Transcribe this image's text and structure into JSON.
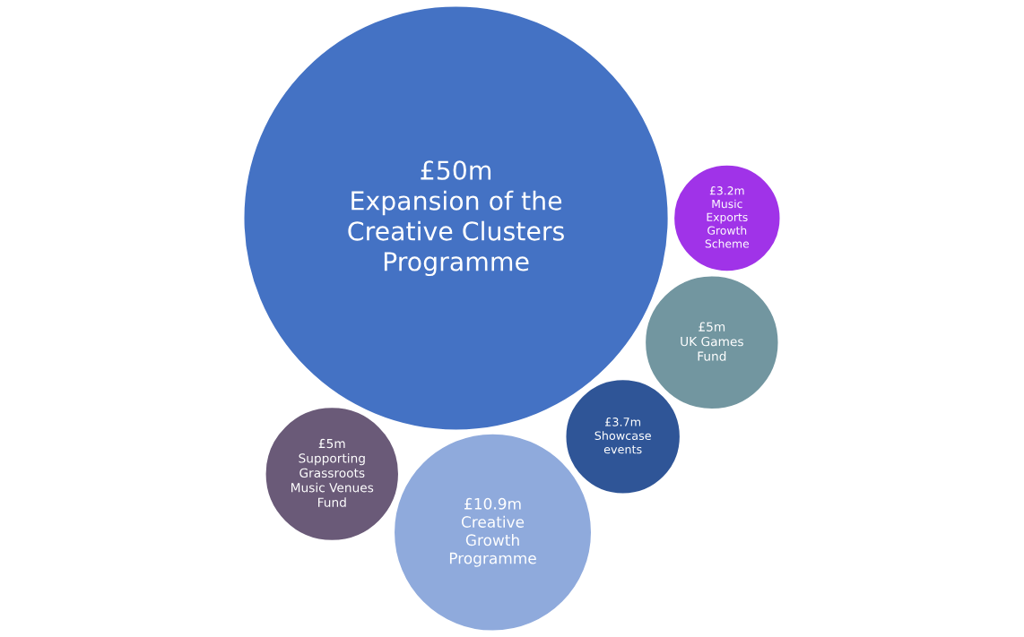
{
  "chart_data": {
    "type": "other",
    "categories": [
      "Expansion of the\nCreative Clusters\nProgramme",
      "Music\nExports\nGrowth\nScheme",
      "UK Games\nFund",
      "Showcase\nevents",
      "Creative\nGrowth\nProgramme",
      "Supporting\nGrassroots\nMusic Venues\nFund"
    ],
    "values": [
      50,
      3.2,
      5,
      3.7,
      10.9,
      5
    ],
    "value_labels": [
      "£50m",
      "£3.2m",
      "£5m",
      "£3.7m",
      "£10.9m",
      "£5m"
    ],
    "colors": [
      "#4472c4",
      "#a033e8",
      "#7296a0",
      "#2f5597",
      "#8faadc",
      "#6a5a78"
    ]
  }
}
